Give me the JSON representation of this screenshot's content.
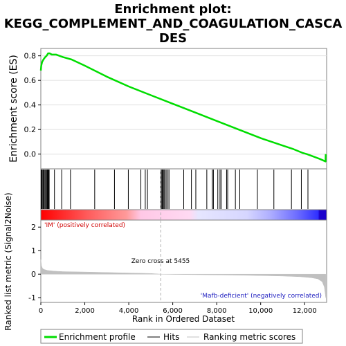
{
  "chart_data": [
    {
      "type": "line",
      "title_lines": [
        "Enrichment plot:",
        "KEGG_COMPLEMENT_AND_COAGULATION_CASCA",
        "DES"
      ],
      "ylabel": "Enrichment score (ES)",
      "ylim": [
        -0.12,
        0.86
      ],
      "yticks": [
        0.0,
        0.2,
        0.4,
        0.6,
        0.8
      ],
      "ytick_labels": [
        "0.0",
        "0.2",
        "0.4",
        "0.6",
        "0.8"
      ],
      "series": [
        {
          "name": "Enrichment profile",
          "color": "#00dd00",
          "x": [
            0,
            20,
            60,
            120,
            200,
            260,
            330,
            400,
            500,
            700,
            1000,
            1400,
            2000,
            3000,
            4000,
            5000,
            6000,
            7000,
            8000,
            9000,
            10000,
            11000,
            11500,
            11900,
            12100,
            12400,
            12700,
            12950,
            12960
          ],
          "y": [
            0.68,
            0.72,
            0.75,
            0.77,
            0.79,
            0.8,
            0.82,
            0.82,
            0.81,
            0.81,
            0.79,
            0.77,
            0.72,
            0.63,
            0.55,
            0.48,
            0.41,
            0.34,
            0.27,
            0.2,
            0.13,
            0.07,
            0.04,
            0.01,
            0.0,
            -0.02,
            -0.04,
            -0.06,
            0.0
          ]
        }
      ]
    },
    {
      "type": "scatter",
      "subtype": "hits",
      "series": [
        {
          "name": "Hits",
          "color": "#000000",
          "x": [
            15,
            40,
            70,
            110,
            150,
            190,
            230,
            260,
            300,
            330,
            350,
            380,
            620,
            950,
            1350,
            2450,
            3350,
            3980,
            4550,
            4750,
            4850,
            5450,
            5500,
            5530,
            5560,
            5600,
            5640,
            5700,
            5780,
            5830,
            6500,
            6850,
            7050,
            7550,
            7800,
            7850,
            8050,
            8150,
            8200,
            8450,
            8500,
            8850,
            9050,
            9850,
            10600,
            11400,
            11850,
            12150
          ]
        }
      ]
    },
    {
      "type": "heatmap",
      "subtype": "ranking-color-bar",
      "label_positive": "'IM' (positively correlated)",
      "label_negative": "'Mafb-deficient' (negatively correlated)"
    },
    {
      "type": "area",
      "ylabel": "Ranked list metric (Signal2Noise)",
      "xlabel": "Rank in Ordered Dataset",
      "xlim": [
        0,
        13000
      ],
      "ylim": [
        -1.2,
        2.3
      ],
      "xticks": [
        0,
        2000,
        4000,
        6000,
        8000,
        10000,
        12000
      ],
      "xtick_labels": [
        "0",
        "2,000",
        "4,000",
        "6,000",
        "8,000",
        "10,000",
        "12,000"
      ],
      "yticks": [
        -1,
        0,
        1,
        2
      ],
      "ytick_labels": [
        "-1",
        "0",
        "1",
        "2"
      ],
      "zero_cross": 5455,
      "annotation": "Zero cross at 5455",
      "series": [
        {
          "name": "Ranking metric scores",
          "color": "#c0c0c0",
          "x": [
            0,
            30,
            80,
            150,
            300,
            600,
            1000,
            2000,
            3000,
            4000,
            5000,
            5455,
            6000,
            7000,
            8000,
            9000,
            10000,
            11000,
            11800,
            12300,
            12600,
            12800,
            12900,
            12960
          ],
          "y": [
            0.62,
            0.35,
            0.24,
            0.2,
            0.16,
            0.13,
            0.11,
            0.09,
            0.07,
            0.05,
            0.03,
            0.0,
            -0.01,
            -0.02,
            -0.03,
            -0.04,
            -0.06,
            -0.08,
            -0.11,
            -0.15,
            -0.2,
            -0.32,
            -0.55,
            -1.0
          ]
        }
      ]
    }
  ],
  "legend": {
    "items": [
      {
        "label": "Enrichment profile",
        "color": "#00dd00"
      },
      {
        "label": "Hits",
        "color": "#000000"
      },
      {
        "label": "Ranking metric scores",
        "color": "#c0c0c0"
      }
    ]
  }
}
